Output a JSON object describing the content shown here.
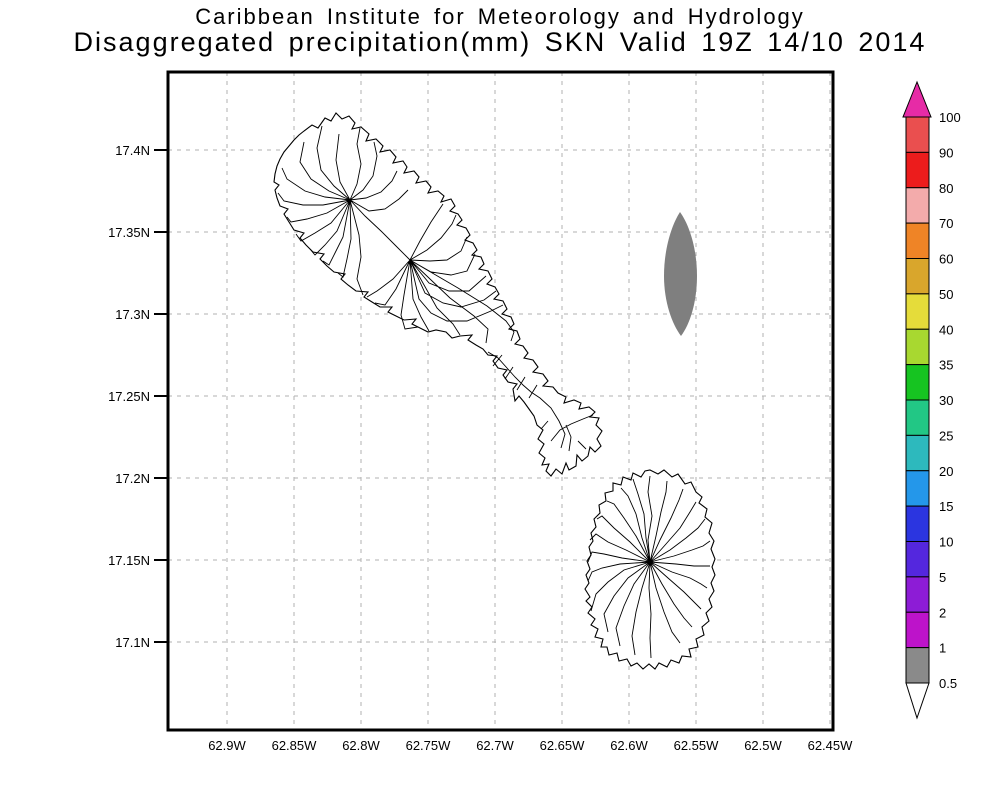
{
  "header": {
    "line1": "Caribbean Institute for Meteorology and Hydrology",
    "line2": "Disaggregated precipitation(mm) SKN Valid 19Z 14/10 2014"
  },
  "map_axes": {
    "lat_labels": [
      "17.4N",
      "17.35N",
      "17.3N",
      "17.25N",
      "17.2N",
      "17.15N",
      "17.1N"
    ],
    "lon_labels": [
      "62.9W",
      "62.85W",
      "62.8W",
      "62.75W",
      "62.7W",
      "62.65W",
      "62.6W",
      "62.55W",
      "62.5W",
      "62.45W"
    ]
  },
  "precipitation_shading": {
    "fill_color": "#7f7f7f"
  },
  "colorbar": {
    "tick_labels": [
      "100",
      "90",
      "80",
      "70",
      "60",
      "50",
      "40",
      "35",
      "30",
      "25",
      "20",
      "15",
      "10",
      "5",
      "2",
      "1",
      "0.5"
    ],
    "segment_colors": [
      "#ea4f4f",
      "#ec1c1c",
      "#f3abab",
      "#ef8426",
      "#d9a62c",
      "#e5dc3a",
      "#a8d830",
      "#16c421",
      "#22c785",
      "#2db9bd",
      "#2497ea",
      "#2b35e0",
      "#5427de",
      "#8d1cd6",
      "#bd13ca",
      "#8a8a8a"
    ],
    "over_arrow_color": "#e62ba6",
    "under_arrow_color": "#ffffff"
  }
}
